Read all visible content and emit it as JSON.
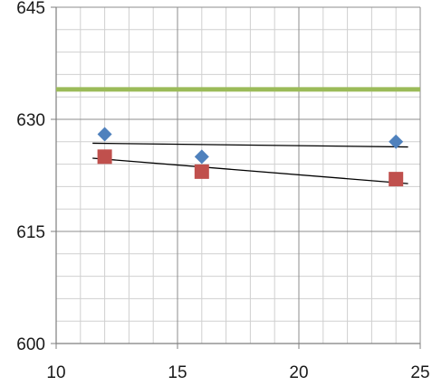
{
  "chart_data": {
    "type": "scatter",
    "title": "",
    "xlabel": "",
    "ylabel": "",
    "xlim": [
      10,
      25
    ],
    "ylim": [
      600,
      645
    ],
    "x_ticks": [
      10,
      15,
      20,
      25
    ],
    "y_ticks": [
      600,
      615,
      630,
      645
    ],
    "x_tick_labels": [
      "10",
      "15",
      "20",
      "25"
    ],
    "y_tick_labels": [
      "600",
      "615",
      "630",
      "645"
    ],
    "grid": true,
    "legend": "none",
    "series": [
      {
        "marker": "diamond",
        "color": "#4f81bd",
        "x": [
          12,
          16,
          24
        ],
        "y": [
          628,
          625,
          627
        ],
        "trendline": {
          "x": [
            11.5,
            24.5
          ],
          "y": [
            626.8,
            626.3
          ],
          "color": "#000000"
        }
      },
      {
        "marker": "square",
        "color": "#c0504d",
        "x": [
          12,
          16,
          24
        ],
        "y": [
          625,
          623,
          622
        ],
        "trendline": {
          "x": [
            11.5,
            24.5
          ],
          "y": [
            624.8,
            621.4
          ],
          "color": "#000000"
        }
      }
    ],
    "reference_lines": [
      {
        "orientation": "horizontal",
        "y": 634,
        "color": "#9bbb59"
      }
    ]
  }
}
